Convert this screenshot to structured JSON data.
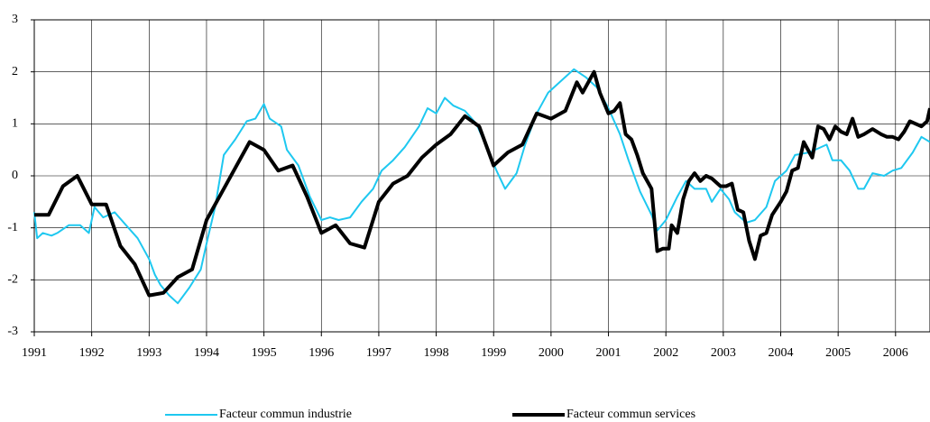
{
  "chart_data": {
    "type": "line",
    "xlim": [
      1991,
      2006.6
    ],
    "xticks": [
      1991,
      1992,
      1993,
      1994,
      1995,
      1996,
      1997,
      1998,
      1999,
      2000,
      2001,
      2002,
      2003,
      2004,
      2005,
      2006
    ],
    "ylim": [
      -3,
      3
    ],
    "yticks": [
      -3,
      -2,
      -1,
      0,
      1,
      2,
      3
    ],
    "grid": true,
    "series": [
      {
        "name": "Facteur commun industrie",
        "color": "#1ec8f0",
        "width": 2,
        "x": [
          1991.0,
          1991.05,
          1991.15,
          1991.3,
          1991.4,
          1991.6,
          1991.8,
          1991.95,
          1992.05,
          1992.2,
          1992.4,
          1992.6,
          1992.8,
          1993.0,
          1993.1,
          1993.2,
          1993.35,
          1993.5,
          1993.7,
          1993.9,
          1994.0,
          1994.15,
          1994.3,
          1994.5,
          1994.7,
          1994.85,
          1995.0,
          1995.1,
          1995.3,
          1995.4,
          1995.6,
          1995.8,
          1996.0,
          1996.15,
          1996.3,
          1996.5,
          1996.7,
          1996.9,
          1997.05,
          1997.25,
          1997.45,
          1997.7,
          1997.85,
          1998.0,
          1998.15,
          1998.3,
          1998.5,
          1998.7,
          1998.9,
          1999.05,
          1999.2,
          1999.4,
          1999.55,
          1999.75,
          1999.95,
          2000.2,
          2000.4,
          2000.6,
          2000.8,
          2001.0,
          2001.2,
          2001.35,
          2001.55,
          2001.75,
          2001.85,
          2002.0,
          2002.2,
          2002.35,
          2002.5,
          2002.7,
          2002.8,
          2002.95,
          2003.1,
          2003.2,
          2003.4,
          2003.55,
          2003.75,
          2003.9,
          2004.1,
          2004.25,
          2004.5,
          2004.8,
          2004.9,
          2005.05,
          2005.2,
          2005.35,
          2005.45,
          2005.6,
          2005.8,
          2005.95,
          2006.1,
          2006.3,
          2006.45,
          2006.6
        ],
        "values": [
          -0.7,
          -1.2,
          -1.1,
          -1.15,
          -1.1,
          -0.95,
          -0.95,
          -1.1,
          -0.6,
          -0.8,
          -0.7,
          -0.95,
          -1.2,
          -1.6,
          -1.9,
          -2.1,
          -2.3,
          -2.45,
          -2.15,
          -1.8,
          -1.3,
          -0.6,
          0.4,
          0.7,
          1.05,
          1.1,
          1.38,
          1.1,
          0.95,
          0.5,
          0.2,
          -0.4,
          -0.85,
          -0.8,
          -0.85,
          -0.8,
          -0.5,
          -0.25,
          0.1,
          0.3,
          0.55,
          0.95,
          1.3,
          1.2,
          1.5,
          1.35,
          1.25,
          1.0,
          0.5,
          0.1,
          -0.25,
          0.05,
          0.6,
          1.2,
          1.6,
          1.85,
          2.05,
          1.9,
          1.7,
          1.3,
          0.8,
          0.3,
          -0.3,
          -0.75,
          -1.05,
          -0.85,
          -0.4,
          -0.1,
          -0.25,
          -0.25,
          -0.5,
          -0.25,
          -0.45,
          -0.7,
          -0.9,
          -0.85,
          -0.6,
          -0.1,
          0.1,
          0.4,
          0.45,
          0.6,
          0.3,
          0.3,
          0.1,
          -0.25,
          -0.25,
          0.05,
          0.0,
          0.1,
          0.15,
          0.45,
          0.75,
          0.65
        ]
      },
      {
        "name": "Facteur commun services",
        "color": "#000000",
        "width": 4,
        "x": [
          1991.0,
          1991.25,
          1991.5,
          1991.75,
          1992.0,
          1992.25,
          1992.5,
          1992.75,
          1993.0,
          1993.25,
          1993.5,
          1993.75,
          1994.0,
          1994.25,
          1994.5,
          1994.75,
          1995.0,
          1995.25,
          1995.5,
          1995.75,
          1996.0,
          1996.25,
          1996.5,
          1996.75,
          1997.0,
          1997.25,
          1997.5,
          1997.75,
          1998.0,
          1998.25,
          1998.5,
          1998.75,
          1999.0,
          1999.25,
          1999.5,
          1999.75,
          2000.0,
          2000.25,
          2000.45,
          2000.55,
          2000.75,
          2000.85,
          2001.0,
          2001.1,
          2001.2,
          2001.3,
          2001.4,
          2001.5,
          2001.6,
          2001.75,
          2001.85,
          2001.95,
          2002.05,
          2002.1,
          2002.2,
          2002.3,
          2002.4,
          2002.5,
          2002.6,
          2002.7,
          2002.8,
          2002.95,
          2003.05,
          2003.15,
          2003.25,
          2003.35,
          2003.45,
          2003.55,
          2003.65,
          2003.75,
          2003.85,
          2004.0,
          2004.1,
          2004.2,
          2004.3,
          2004.4,
          2004.55,
          2004.65,
          2004.75,
          2004.85,
          2004.95,
          2005.05,
          2005.15,
          2005.25,
          2005.35,
          2005.45,
          2005.6,
          2005.75,
          2005.85,
          2005.95,
          2006.05,
          2006.15,
          2006.25,
          2006.35,
          2006.45,
          2006.55,
          2006.6
        ],
        "values": [
          -0.75,
          -0.75,
          -0.2,
          0.0,
          -0.55,
          -0.55,
          -1.35,
          -1.7,
          -2.3,
          -2.25,
          -1.95,
          -1.8,
          -0.85,
          -0.35,
          0.15,
          0.65,
          0.5,
          0.1,
          0.2,
          -0.4,
          -1.1,
          -0.95,
          -1.3,
          -1.38,
          -0.5,
          -0.15,
          0.0,
          0.35,
          0.6,
          0.8,
          1.15,
          0.95,
          0.2,
          0.45,
          0.6,
          1.2,
          1.1,
          1.25,
          1.8,
          1.6,
          2.0,
          1.6,
          1.2,
          1.25,
          1.4,
          0.8,
          0.7,
          0.4,
          0.05,
          -0.25,
          -1.45,
          -1.4,
          -1.4,
          -0.95,
          -1.1,
          -0.45,
          -0.1,
          0.05,
          -0.1,
          0.0,
          -0.05,
          -0.2,
          -0.2,
          -0.15,
          -0.65,
          -0.7,
          -1.25,
          -1.6,
          -1.15,
          -1.1,
          -0.75,
          -0.5,
          -0.3,
          0.1,
          0.15,
          0.65,
          0.35,
          0.95,
          0.9,
          0.7,
          0.95,
          0.85,
          0.8,
          1.1,
          0.75,
          0.8,
          0.9,
          0.8,
          0.75,
          0.75,
          0.7,
          0.85,
          1.05,
          1.0,
          0.95,
          1.05,
          1.3
        ]
      }
    ]
  }
}
